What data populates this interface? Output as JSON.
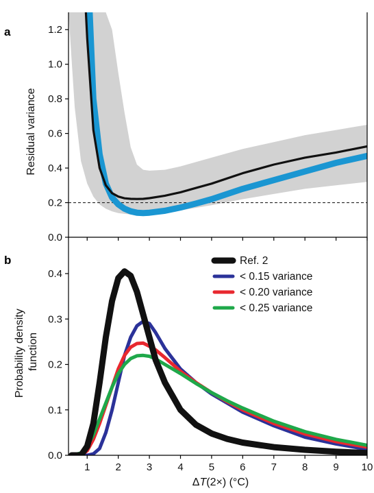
{
  "panel_a_letter": "a",
  "panel_b_letter": "b",
  "x_axis": {
    "label_prefix": "Δ",
    "label_italic": "T",
    "label_suffix": "(2×) (°C)"
  },
  "chart_data": [
    {
      "type": "line",
      "panel": "a",
      "ylabel": "Residual variance",
      "xlim": [
        0.4,
        10
      ],
      "ylim": [
        0,
        1.3
      ],
      "xticks": [
        1,
        2,
        3,
        4,
        5,
        6,
        7,
        8,
        9,
        10
      ],
      "yticks": [
        0.0,
        0.2,
        0.4,
        0.6,
        0.8,
        1.0,
        1.2
      ],
      "ytick_labels": [
        "0.0",
        "0.2",
        "0.4",
        "0.6",
        "0.8",
        "1.0",
        "1.2"
      ],
      "reference_line": {
        "y": 0.2,
        "style": "dashed"
      },
      "band": {
        "color": "#d2d2d2",
        "x": [
          0.4,
          0.6,
          0.8,
          1.0,
          1.2,
          1.4,
          1.6,
          1.8,
          2.0,
          2.2,
          2.4,
          2.6,
          2.8,
          3.0,
          3.5,
          4.0,
          5.0,
          6.0,
          7.0,
          8.0,
          9.0,
          10.0
        ],
        "upper": [
          1.3,
          1.3,
          1.3,
          1.3,
          1.3,
          1.3,
          1.3,
          1.2,
          0.95,
          0.72,
          0.52,
          0.42,
          0.39,
          0.385,
          0.39,
          0.41,
          0.46,
          0.51,
          0.55,
          0.59,
          0.62,
          0.65
        ],
        "lower": [
          1.3,
          0.75,
          0.44,
          0.31,
          0.235,
          0.19,
          0.165,
          0.15,
          0.14,
          0.135,
          0.132,
          0.13,
          0.13,
          0.13,
          0.14,
          0.155,
          0.185,
          0.22,
          0.25,
          0.28,
          0.3,
          0.32
        ]
      },
      "series": [
        {
          "color": "#1a96d2",
          "x": [
            1.08,
            1.2,
            1.4,
            1.6,
            1.8,
            2.0,
            2.2,
            2.4,
            2.6,
            2.8,
            3.0,
            3.5,
            4.0,
            4.5,
            5.0,
            6.0,
            7.0,
            8.0,
            9.0,
            10.0
          ],
          "y": [
            1.3,
            0.8,
            0.48,
            0.31,
            0.23,
            0.19,
            0.165,
            0.15,
            0.142,
            0.14,
            0.142,
            0.153,
            0.172,
            0.195,
            0.22,
            0.28,
            0.33,
            0.38,
            0.43,
            0.47
          ]
        },
        {
          "color": "#111111",
          "x": [
            0.96,
            1.0,
            1.2,
            1.4,
            1.6,
            1.8,
            2.0,
            2.2,
            2.4,
            2.6,
            2.8,
            3.0,
            3.5,
            4.0,
            4.5,
            5.0,
            6.0,
            7.0,
            8.0,
            9.0,
            10.0
          ],
          "y": [
            1.3,
            1.15,
            0.62,
            0.4,
            0.3,
            0.255,
            0.235,
            0.225,
            0.222,
            0.221,
            0.222,
            0.226,
            0.24,
            0.26,
            0.285,
            0.31,
            0.37,
            0.42,
            0.46,
            0.49,
            0.525
          ]
        }
      ]
    },
    {
      "type": "line",
      "panel": "b",
      "ylabel": "Probability density function",
      "ylabel_lines": [
        "Probability density",
        "function"
      ],
      "xlim": [
        0.4,
        10
      ],
      "ylim": [
        0,
        0.48
      ],
      "xticks": [
        1,
        2,
        3,
        4,
        5,
        6,
        7,
        8,
        9,
        10
      ],
      "xtick_labels": [
        "1",
        "2",
        "3",
        "4",
        "5",
        "6",
        "7",
        "8",
        "9",
        "10"
      ],
      "yticks": [
        0.0,
        0.1,
        0.2,
        0.3,
        0.4
      ],
      "ytick_labels": [
        "0.0",
        "0.1",
        "0.2",
        "0.3",
        "0.4"
      ],
      "series": [
        {
          "name": "Ref. 2",
          "color": "#111111",
          "x": [
            0.5,
            0.8,
            1.0,
            1.2,
            1.4,
            1.6,
            1.8,
            2.0,
            2.2,
            2.4,
            2.6,
            2.8,
            3.0,
            3.2,
            3.5,
            4.0,
            4.5,
            5.0,
            5.5,
            6.0,
            7.0,
            8.0,
            9.0,
            10.0
          ],
          "y": [
            0.0,
            0.0,
            0.02,
            0.07,
            0.16,
            0.26,
            0.34,
            0.39,
            0.405,
            0.395,
            0.36,
            0.31,
            0.26,
            0.21,
            0.16,
            0.1,
            0.067,
            0.048,
            0.036,
            0.028,
            0.018,
            0.012,
            0.008,
            0.005
          ]
        },
        {
          "name": "< 0.15 variance",
          "color": "#2b3299",
          "x": [
            0.5,
            1.0,
            1.2,
            1.4,
            1.6,
            1.8,
            2.0,
            2.2,
            2.4,
            2.6,
            2.8,
            3.0,
            3.2,
            3.5,
            4.0,
            4.5,
            5.0,
            5.5,
            6.0,
            7.0,
            8.0,
            9.0,
            10.0
          ],
          "y": [
            0.0,
            0.0,
            0.003,
            0.015,
            0.05,
            0.1,
            0.16,
            0.22,
            0.26,
            0.285,
            0.295,
            0.29,
            0.27,
            0.235,
            0.19,
            0.16,
            0.135,
            0.115,
            0.095,
            0.065,
            0.04,
            0.025,
            0.013
          ]
        },
        {
          "name": "< 0.20 variance",
          "color": "#e8282f",
          "x": [
            0.5,
            0.8,
            1.0,
            1.2,
            1.4,
            1.6,
            1.8,
            2.0,
            2.2,
            2.4,
            2.6,
            2.8,
            3.0,
            3.2,
            3.5,
            4.0,
            4.5,
            5.0,
            5.5,
            6.0,
            7.0,
            8.0,
            9.0,
            10.0
          ],
          "y": [
            0.0,
            0.0,
            0.01,
            0.035,
            0.07,
            0.11,
            0.15,
            0.19,
            0.22,
            0.238,
            0.246,
            0.247,
            0.24,
            0.232,
            0.215,
            0.185,
            0.16,
            0.138,
            0.118,
            0.1,
            0.07,
            0.047,
            0.03,
            0.018
          ]
        },
        {
          "name": "< 0.25 variance",
          "color": "#1fa84a",
          "x": [
            0.5,
            0.8,
            1.0,
            1.2,
            1.4,
            1.6,
            1.8,
            2.0,
            2.2,
            2.4,
            2.6,
            2.8,
            3.0,
            3.2,
            3.5,
            4.0,
            4.5,
            5.0,
            5.5,
            6.0,
            7.0,
            8.0,
            9.0,
            10.0
          ],
          "y": [
            0.0,
            0.005,
            0.02,
            0.045,
            0.08,
            0.115,
            0.15,
            0.18,
            0.2,
            0.213,
            0.219,
            0.22,
            0.218,
            0.212,
            0.2,
            0.18,
            0.158,
            0.138,
            0.12,
            0.104,
            0.075,
            0.052,
            0.035,
            0.022
          ]
        }
      ]
    }
  ]
}
